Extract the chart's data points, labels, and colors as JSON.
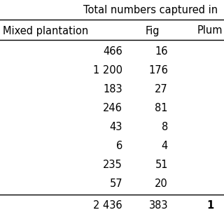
{
  "header_text": "Total numbers captured in",
  "col_headers": [
    "Mixed plantation",
    "Fig",
    "Plum"
  ],
  "data_rows": [
    [
      "466",
      "16"
    ],
    [
      "1 200",
      "176"
    ],
    [
      "183",
      "27"
    ],
    [
      "246",
      "81"
    ],
    [
      "43",
      "8"
    ],
    [
      "6",
      "4"
    ],
    [
      "235",
      "51"
    ],
    [
      "57",
      "20"
    ]
  ],
  "total_row": [
    "2 436",
    "383",
    "1"
  ],
  "background_color": "#ffffff",
  "text_color": "#000000",
  "font_size": 10.5,
  "line_color": "#000000"
}
